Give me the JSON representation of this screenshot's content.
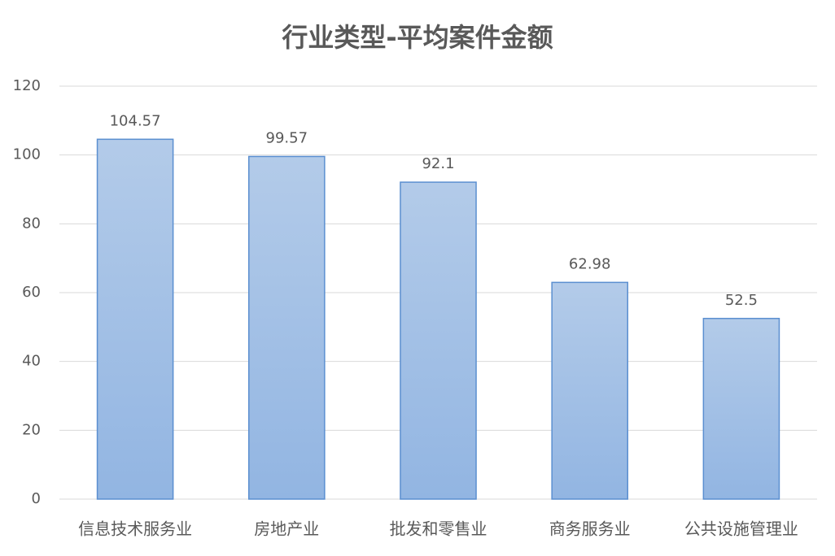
{
  "chart_data": {
    "type": "bar",
    "title": "行业类型-平均案件金额",
    "categories": [
      "信息技术服务业",
      "房地产业",
      "批发和零售业",
      "商务服务业",
      "公共设施管理业"
    ],
    "values": [
      104.57,
      99.57,
      92.1,
      62.98,
      52.5
    ],
    "color": "#5b8fd0",
    "ylim": [
      0,
      120
    ],
    "yticks": [
      0,
      20,
      40,
      60,
      80,
      100,
      120
    ],
    "grid": true
  }
}
